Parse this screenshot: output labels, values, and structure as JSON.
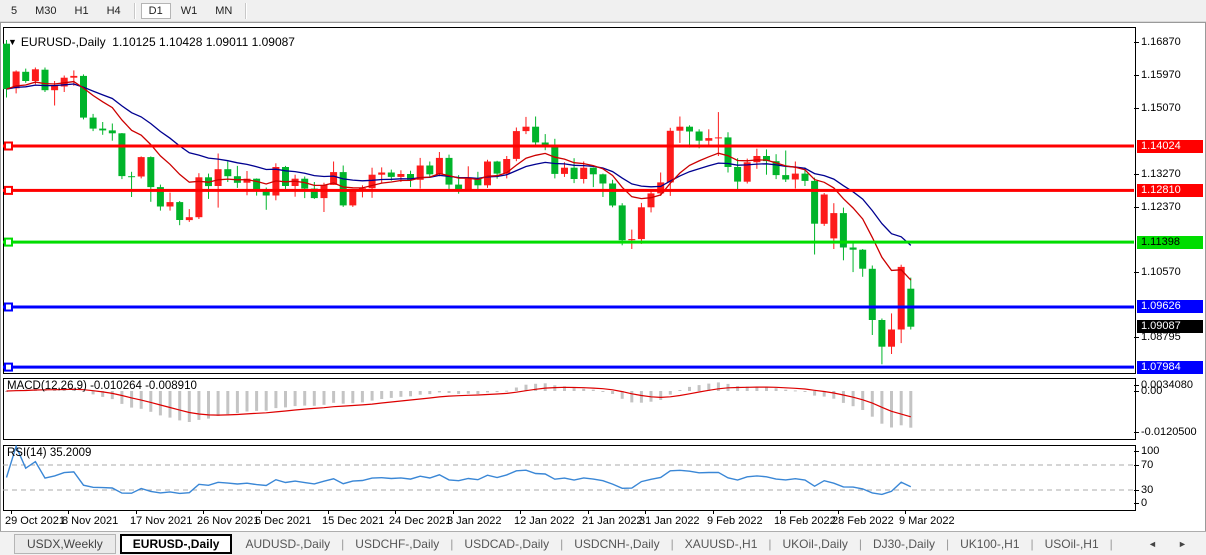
{
  "toolbar": {
    "timeframes": [
      "5",
      "M30",
      "H1",
      "H4",
      "D1",
      "W1",
      "MN"
    ],
    "active": "D1",
    "separators_after": [
      "H4",
      "MN"
    ]
  },
  "chart": {
    "title": {
      "dropdown_icon": "symbol-dropdown",
      "symbol": "EURUSD-,Daily",
      "open": "1.10125",
      "high": "1.10428",
      "low": "1.09011",
      "close": "1.09087"
    }
  },
  "chart_data": {
    "type": "candlestick",
    "symbol": "EURUSD-,Daily",
    "colors": {
      "up_candle": "#fd1b1b",
      "down_candle": "#00b42a",
      "level_red": "#ff0000",
      "level_green": "#00dd00",
      "level_blue": "#0000ff",
      "current_price_bg": "#000000",
      "ma_fast": "#cc0000",
      "ma_slow": "#000090",
      "macd_hist": "#c4c4c4",
      "macd_signal": "#dd0000",
      "rsi_line": "#3a87d6"
    },
    "candles": [
      [
        1.1682,
        1.1692,
        1.1535,
        1.1558
      ],
      [
        1.156,
        1.1609,
        1.1546,
        1.1606
      ],
      [
        1.1605,
        1.1614,
        1.1575,
        1.158
      ],
      [
        1.158,
        1.1617,
        1.1571,
        1.1612
      ],
      [
        1.1611,
        1.1617,
        1.155,
        1.1555
      ],
      [
        1.1555,
        1.158,
        1.1513,
        1.1567
      ],
      [
        1.1565,
        1.1595,
        1.155,
        1.1589
      ],
      [
        1.1589,
        1.1609,
        1.1567,
        1.1594
      ],
      [
        1.1594,
        1.1598,
        1.1475,
        1.148
      ],
      [
        1.148,
        1.149,
        1.1443,
        1.145
      ],
      [
        1.145,
        1.1468,
        1.1433,
        1.1445
      ],
      [
        1.1445,
        1.1464,
        1.1417,
        1.1437
      ],
      [
        1.1437,
        1.1438,
        1.1312,
        1.132
      ],
      [
        1.132,
        1.1332,
        1.1263,
        1.1319
      ],
      [
        1.1319,
        1.1374,
        1.1314,
        1.1372
      ],
      [
        1.1372,
        1.1374,
        1.125,
        1.129
      ],
      [
        1.129,
        1.1297,
        1.1226,
        1.1237
      ],
      [
        1.1237,
        1.1275,
        1.1226,
        1.1249
      ],
      [
        1.1249,
        1.1252,
        1.1186,
        1.12
      ],
      [
        1.12,
        1.123,
        1.1195,
        1.1208
      ],
      [
        1.1208,
        1.1328,
        1.1203,
        1.1317
      ],
      [
        1.1317,
        1.1327,
        1.1258,
        1.1293
      ],
      [
        1.1293,
        1.1382,
        1.1234,
        1.1339
      ],
      [
        1.1339,
        1.136,
        1.1304,
        1.132
      ],
      [
        1.132,
        1.1348,
        1.1288,
        1.1302
      ],
      [
        1.1302,
        1.1334,
        1.1268,
        1.1313
      ],
      [
        1.1313,
        1.1314,
        1.1267,
        1.1284
      ],
      [
        1.1284,
        1.1289,
        1.1228,
        1.1267
      ],
      [
        1.1267,
        1.1355,
        1.1254,
        1.1345
      ],
      [
        1.1345,
        1.1348,
        1.128,
        1.1293
      ],
      [
        1.1293,
        1.1324,
        1.1264,
        1.1313
      ],
      [
        1.1313,
        1.1319,
        1.126,
        1.1286
      ],
      [
        1.1286,
        1.1304,
        1.1258,
        1.126
      ],
      [
        1.126,
        1.1302,
        1.1222,
        1.1296
      ],
      [
        1.1296,
        1.136,
        1.1296,
        1.1331
      ],
      [
        1.1331,
        1.1349,
        1.1236,
        1.124
      ],
      [
        1.124,
        1.128,
        1.1236,
        1.1278
      ],
      [
        1.1278,
        1.1295,
        1.1262,
        1.1287
      ],
      [
        1.1287,
        1.1343,
        1.1261,
        1.1324
      ],
      [
        1.1324,
        1.1344,
        1.13,
        1.133
      ],
      [
        1.133,
        1.1338,
        1.1308,
        1.1318
      ],
      [
        1.1318,
        1.1336,
        1.1304,
        1.1326
      ],
      [
        1.1326,
        1.1335,
        1.129,
        1.131
      ],
      [
        1.131,
        1.137,
        1.1286,
        1.1349
      ],
      [
        1.1349,
        1.136,
        1.1316,
        1.1325
      ],
      [
        1.1325,
        1.1386,
        1.132,
        1.137
      ],
      [
        1.137,
        1.1379,
        1.1279,
        1.1297
      ],
      [
        1.1297,
        1.1323,
        1.1272,
        1.1284
      ],
      [
        1.1284,
        1.1347,
        1.128,
        1.1313
      ],
      [
        1.1313,
        1.1332,
        1.1285,
        1.1295
      ],
      [
        1.1295,
        1.1365,
        1.1288,
        1.136
      ],
      [
        1.136,
        1.1362,
        1.1313,
        1.1327
      ],
      [
        1.1327,
        1.1375,
        1.1314,
        1.1367
      ],
      [
        1.1367,
        1.1453,
        1.1361,
        1.1443
      ],
      [
        1.1443,
        1.1482,
        1.1435,
        1.1455
      ],
      [
        1.1455,
        1.1483,
        1.1399,
        1.1412
      ],
      [
        1.1412,
        1.1435,
        1.1391,
        1.1405
      ],
      [
        1.1405,
        1.1422,
        1.1314,
        1.1326
      ],
      [
        1.1326,
        1.1358,
        1.1318,
        1.1343
      ],
      [
        1.1343,
        1.1369,
        1.1301,
        1.1312
      ],
      [
        1.1312,
        1.136,
        1.13,
        1.1343
      ],
      [
        1.1343,
        1.1344,
        1.129,
        1.1325
      ],
      [
        1.1325,
        1.1327,
        1.1263,
        1.13
      ],
      [
        1.13,
        1.131,
        1.1235,
        1.124
      ],
      [
        1.124,
        1.1246,
        1.1131,
        1.1145
      ],
      [
        1.1145,
        1.1174,
        1.1121,
        1.1148
      ],
      [
        1.1148,
        1.1247,
        1.1135,
        1.1235
      ],
      [
        1.1235,
        1.1279,
        1.1221,
        1.1273
      ],
      [
        1.1273,
        1.133,
        1.1266,
        1.1303
      ],
      [
        1.1303,
        1.1452,
        1.1266,
        1.1444
      ],
      [
        1.1444,
        1.1483,
        1.1411,
        1.1455
      ],
      [
        1.1455,
        1.1459,
        1.1398,
        1.1442
      ],
      [
        1.1442,
        1.1448,
        1.1396,
        1.1417
      ],
      [
        1.1417,
        1.1448,
        1.1403,
        1.1424
      ],
      [
        1.1424,
        1.1495,
        1.1375,
        1.1426
      ],
      [
        1.1426,
        1.144,
        1.133,
        1.1345
      ],
      [
        1.1345,
        1.1369,
        1.1278,
        1.1305
      ],
      [
        1.1305,
        1.1368,
        1.13,
        1.1358
      ],
      [
        1.1358,
        1.1395,
        1.134,
        1.1375
      ],
      [
        1.1375,
        1.1393,
        1.1324,
        1.1361
      ],
      [
        1.1361,
        1.138,
        1.1312,
        1.1323
      ],
      [
        1.1323,
        1.139,
        1.1304,
        1.1311
      ],
      [
        1.1311,
        1.136,
        1.1286,
        1.1327
      ],
      [
        1.1327,
        1.1344,
        1.1293,
        1.1307
      ],
      [
        1.1307,
        1.1316,
        1.1106,
        1.119
      ],
      [
        1.119,
        1.1274,
        1.1184,
        1.127
      ],
      [
        1.115,
        1.1246,
        1.1121,
        1.1219
      ],
      [
        1.1219,
        1.1234,
        1.109,
        1.1125
      ],
      [
        1.1125,
        1.1139,
        1.1058,
        1.1119
      ],
      [
        1.1119,
        1.1121,
        1.1045,
        1.1067
      ],
      [
        1.1067,
        1.1076,
        1.0886,
        1.0927
      ],
      [
        1.0927,
        1.0931,
        1.0806,
        1.0854
      ],
      [
        1.0854,
        1.0945,
        1.0834,
        1.0901
      ],
      [
        1.0901,
        1.1078,
        1.0864,
        1.1072
      ],
      [
        1.10125,
        1.10428,
        1.09011,
        1.09087
      ]
    ],
    "moving_averages": [
      {
        "name": "fast",
        "period": 10,
        "color_key": "ma_fast"
      },
      {
        "name": "slow",
        "period": 20,
        "color_key": "ma_slow"
      }
    ],
    "levels": [
      {
        "price": 1.14024,
        "label": "1.14024",
        "color_key": "level_red",
        "text": "#ffffff"
      },
      {
        "price": 1.1281,
        "label": "1.12810",
        "color_key": "level_red",
        "text": "#ffffff"
      },
      {
        "price": 1.11398,
        "label": "1.11398",
        "color_key": "level_green",
        "text": "#000000"
      },
      {
        "price": 1.09626,
        "label": "1.09626",
        "color_key": "level_blue",
        "text": "#ffffff"
      },
      {
        "price": 1.07984,
        "label": "1.07984",
        "color_key": "level_blue",
        "text": "#ffffff"
      }
    ],
    "current_price": {
      "price": 1.09087,
      "label": "1.09087"
    },
    "price_axis_ticks": [
      {
        "v": 1.1687,
        "label": "1.16870"
      },
      {
        "v": 1.1597,
        "label": "1.15970"
      },
      {
        "v": 1.1507,
        "label": "1.15070"
      },
      {
        "v": 1.1327,
        "label": "1.13270"
      },
      {
        "v": 1.1237,
        "label": "1.12370"
      },
      {
        "v": 1.1057,
        "label": "1.10570"
      },
      {
        "v": 1.08795,
        "label": "1.08795"
      }
    ],
    "date_ticks": [
      {
        "i": 0,
        "label": "29 Oct 2021"
      },
      {
        "i": 6,
        "label": "8 Nov 2021"
      },
      {
        "i": 13,
        "label": "17 Nov 2021"
      },
      {
        "i": 20,
        "label": "26 Nov 2021"
      },
      {
        "i": 26,
        "label": "6 Dec 2021"
      },
      {
        "i": 33,
        "label": "15 Dec 2021"
      },
      {
        "i": 40,
        "label": "24 Dec 2021"
      },
      {
        "i": 46,
        "label": "3 Jan 2022"
      },
      {
        "i": 53,
        "label": "12 Jan 2022"
      },
      {
        "i": 60,
        "label": "21 Jan 2022"
      },
      {
        "i": 66,
        "label": "31 Jan 2022"
      },
      {
        "i": 73,
        "label": "9 Feb 2022"
      },
      {
        "i": 80,
        "label": "18 Feb 2022"
      },
      {
        "i": 86,
        "label": "28 Feb 2022"
      },
      {
        "i": 93,
        "label": "9 Mar 2022"
      }
    ],
    "macd": {
      "title": "MACD(12,26,9) -0.010264 -0.008910",
      "fast": 12,
      "slow": 26,
      "signal": 9,
      "axis": [
        {
          "v": 0.003408,
          "label": "0.0034080"
        },
        {
          "v": 0,
          "label": "0.00"
        },
        {
          "v": -0.01205,
          "label": "-0.0120500"
        }
      ]
    },
    "rsi": {
      "title": "RSI(14) 35.2009",
      "period": 14,
      "axis": [
        {
          "v": 100,
          "label": "100"
        },
        {
          "v": 70,
          "label": "70"
        },
        {
          "v": 30,
          "label": "30"
        },
        {
          "v": 0,
          "label": "0"
        }
      ],
      "guide_levels": [
        70,
        30
      ]
    }
  },
  "tabs": {
    "items": [
      "USDX,Weekly",
      "EURUSD-,Daily",
      "AUDUSD-,Daily",
      "USDCHF-,Daily",
      "USDCAD-,Daily",
      "USDCNH-,Daily",
      "XAUUSD-,H1",
      "UKOil-,Daily",
      "DJ30-,Daily",
      "UK100-,H1",
      "USOil-,H1"
    ],
    "active_index": 1,
    "scroll_left_icon": "◄",
    "scroll_right_icon": "►"
  }
}
